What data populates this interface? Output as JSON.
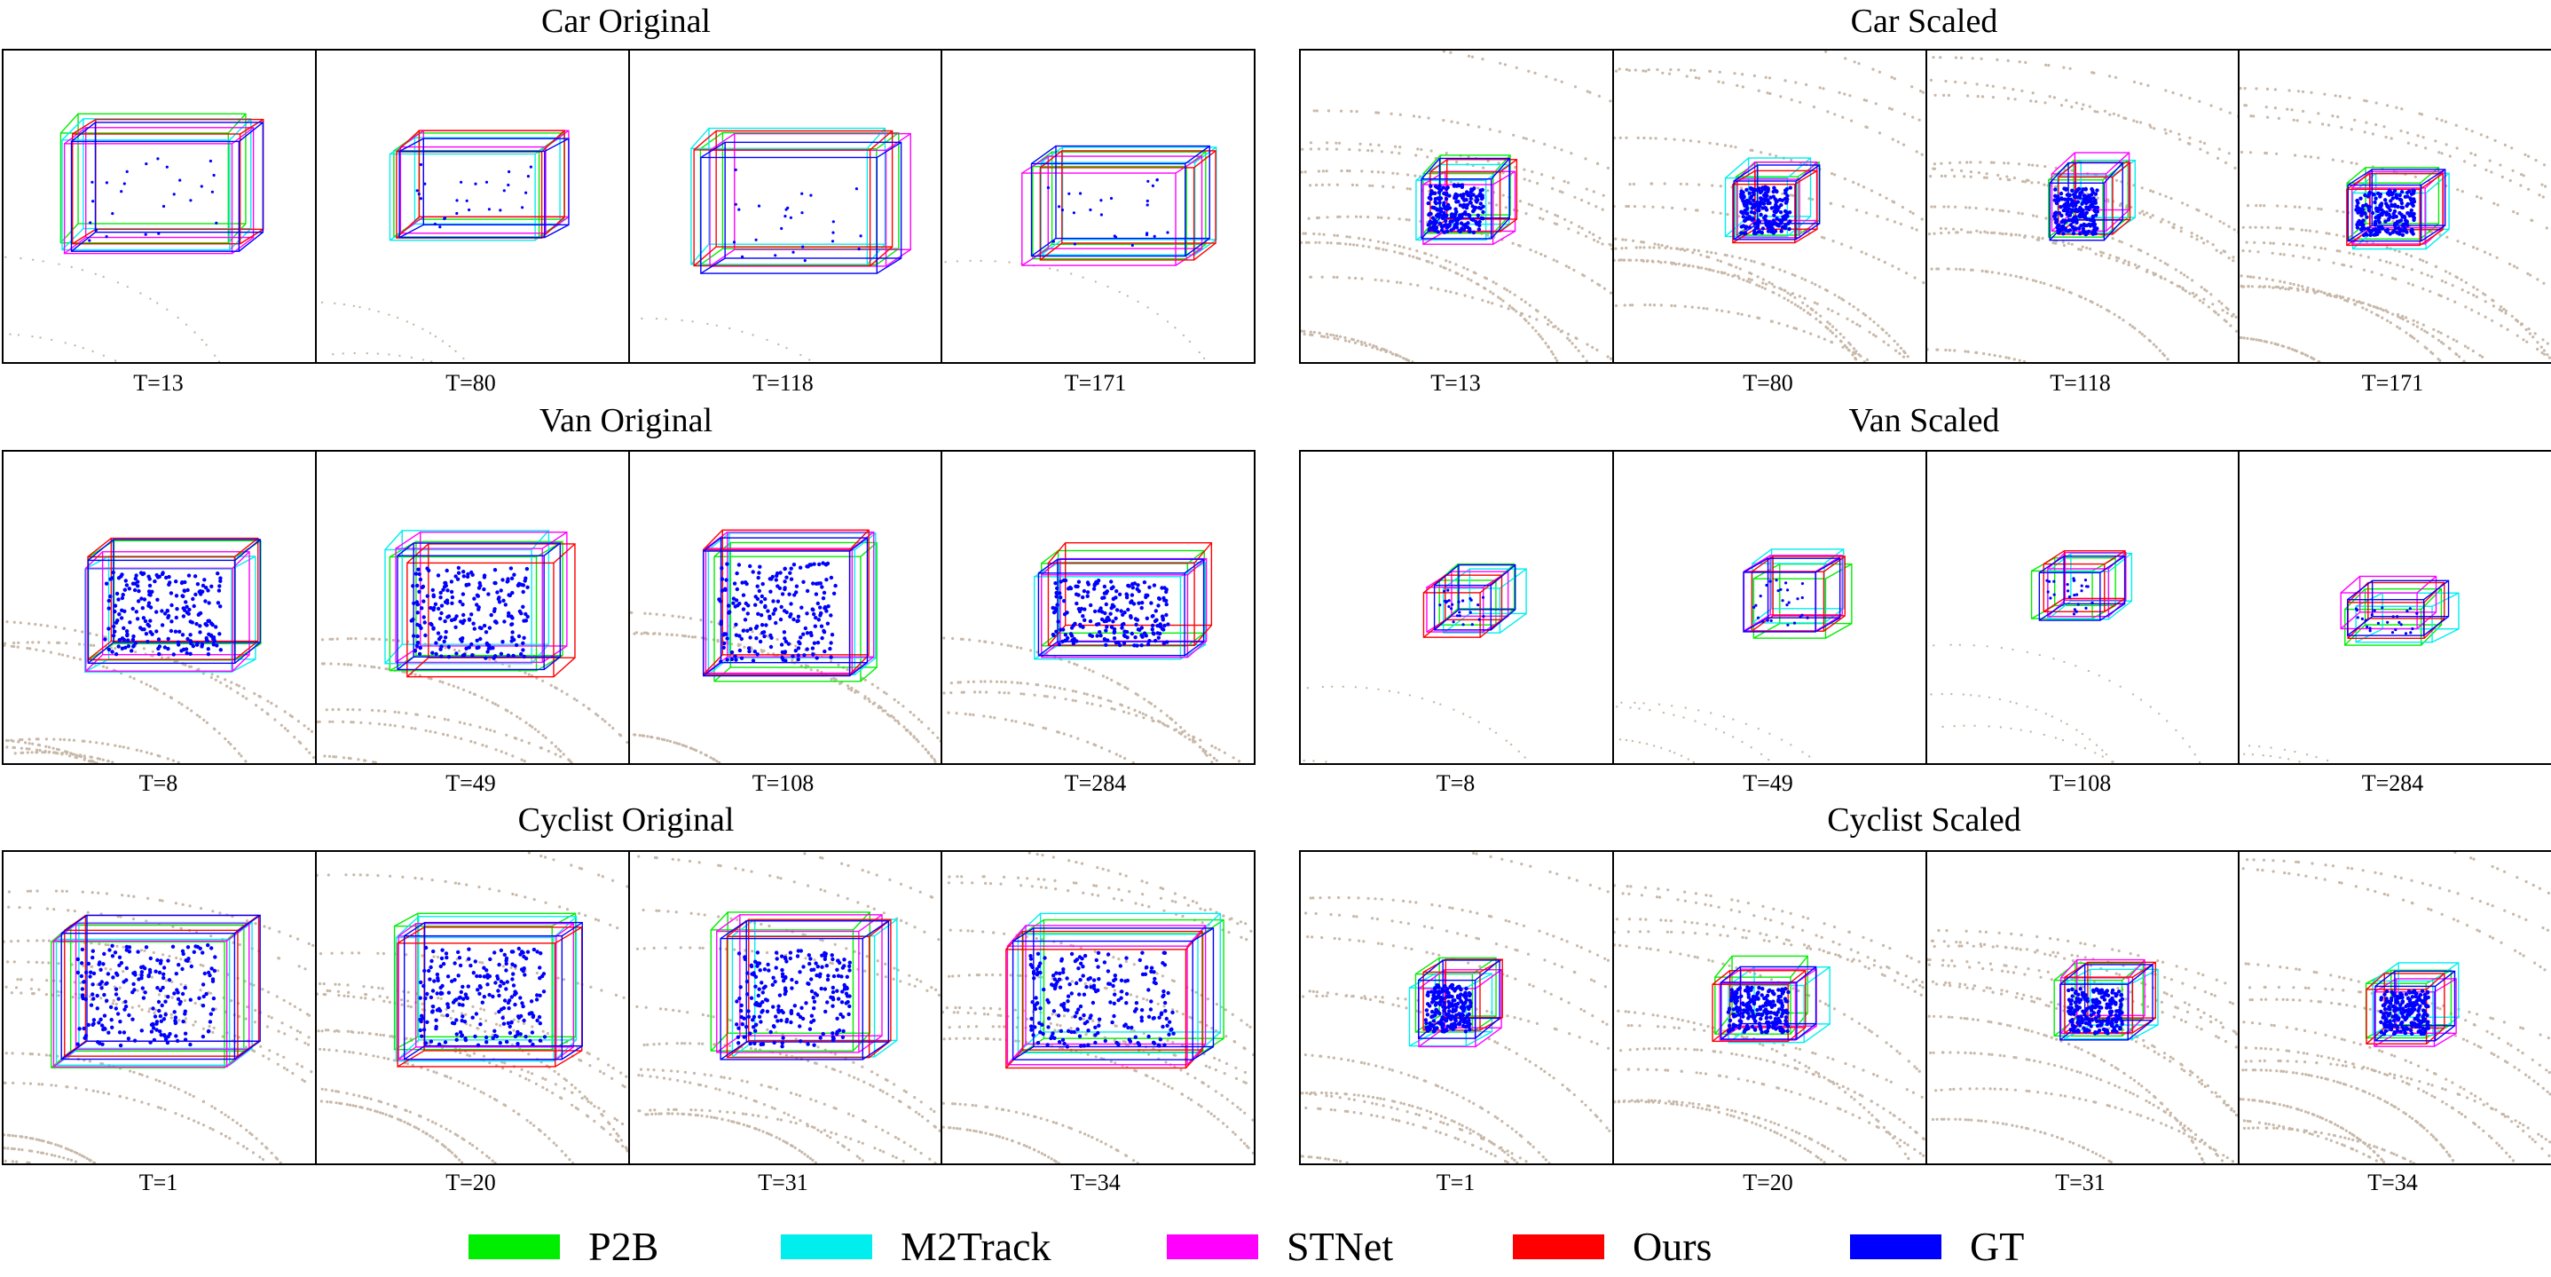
{
  "groups": [
    {
      "title": "Car Original",
      "frames": [
        "T=13",
        "T=80",
        "T=118",
        "T=171"
      ],
      "points": "sparse"
    },
    {
      "title": "Car Scaled",
      "frames": [
        "T=13",
        "T=80",
        "T=118",
        "T=171"
      ],
      "points": "dense"
    },
    {
      "title": "Van Original",
      "frames": [
        "T=8",
        "T=49",
        "T=108",
        "T=284"
      ],
      "points": "mixed"
    },
    {
      "title": "Van Scaled",
      "frames": [
        "T=8",
        "T=49",
        "T=108",
        "T=284"
      ],
      "points": "sparse"
    },
    {
      "title": "Cyclist Original",
      "frames": [
        "T=1",
        "T=20",
        "T=31",
        "T=34"
      ],
      "points": "dense"
    },
    {
      "title": "Cyclist Scaled",
      "frames": [
        "T=1",
        "T=20",
        "T=31",
        "T=34"
      ],
      "points": "dense"
    }
  ],
  "legend": [
    {
      "label": "P2B",
      "color": "#00ee00"
    },
    {
      "label": "M2Track",
      "color": "#00eeee"
    },
    {
      "label": "STNet",
      "color": "#ff00ff"
    },
    {
      "label": "Ours",
      "color": "#ff0000"
    },
    {
      "label": "GT",
      "color": "#0000ff"
    }
  ],
  "colors": {
    "lidar_points": "#c8b8a8",
    "target_points": "#0000ff",
    "frame_border": "#000000"
  }
}
